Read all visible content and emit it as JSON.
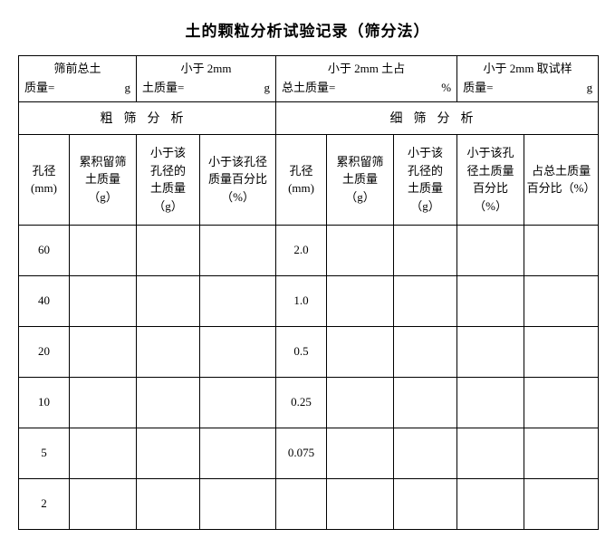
{
  "title": "土的颗粒分析试验记录（筛分法）",
  "header_row": {
    "c1": {
      "line1": "筛前总土",
      "label": "质量=",
      "unit": "g"
    },
    "c2": {
      "line1": "小于 2mm",
      "label": "土质量=",
      "unit": "g"
    },
    "c3": {
      "line1": "小于 2mm 土占",
      "label": "总土质量=",
      "unit": "%"
    },
    "c4": {
      "line1": "小于 2mm 取试样",
      "label": "质量=",
      "unit": "g"
    }
  },
  "sections": {
    "coarse": "粗筛分析",
    "fine": "细筛分析"
  },
  "columns": {
    "coarse": [
      "孔径\n(mm)",
      "累积留筛\n土质量\n（g）",
      "小于该\n孔径的\n土质量\n（g）",
      "小于该孔径\n质量百分比\n（%）"
    ],
    "fine": [
      "孔径\n(mm)",
      "累积留筛\n土质量\n（g）",
      "小于该\n孔径的\n土质量\n（g）",
      "小于该孔\n径土质量\n百分比\n（%）",
      "占总土质量\n百分比（%）"
    ]
  },
  "rows": [
    {
      "coarse_d": "60",
      "fine_d": "2.0"
    },
    {
      "coarse_d": "40",
      "fine_d": "1.0"
    },
    {
      "coarse_d": "20",
      "fine_d": "0.5"
    },
    {
      "coarse_d": "10",
      "fine_d": "0.25"
    },
    {
      "coarse_d": "5",
      "fine_d": "0.075"
    },
    {
      "coarse_d": "2",
      "fine_d": ""
    }
  ],
  "col_widths": {
    "coarse": [
      56,
      74,
      70,
      84
    ],
    "fine": [
      56,
      74,
      70,
      74,
      82
    ]
  }
}
